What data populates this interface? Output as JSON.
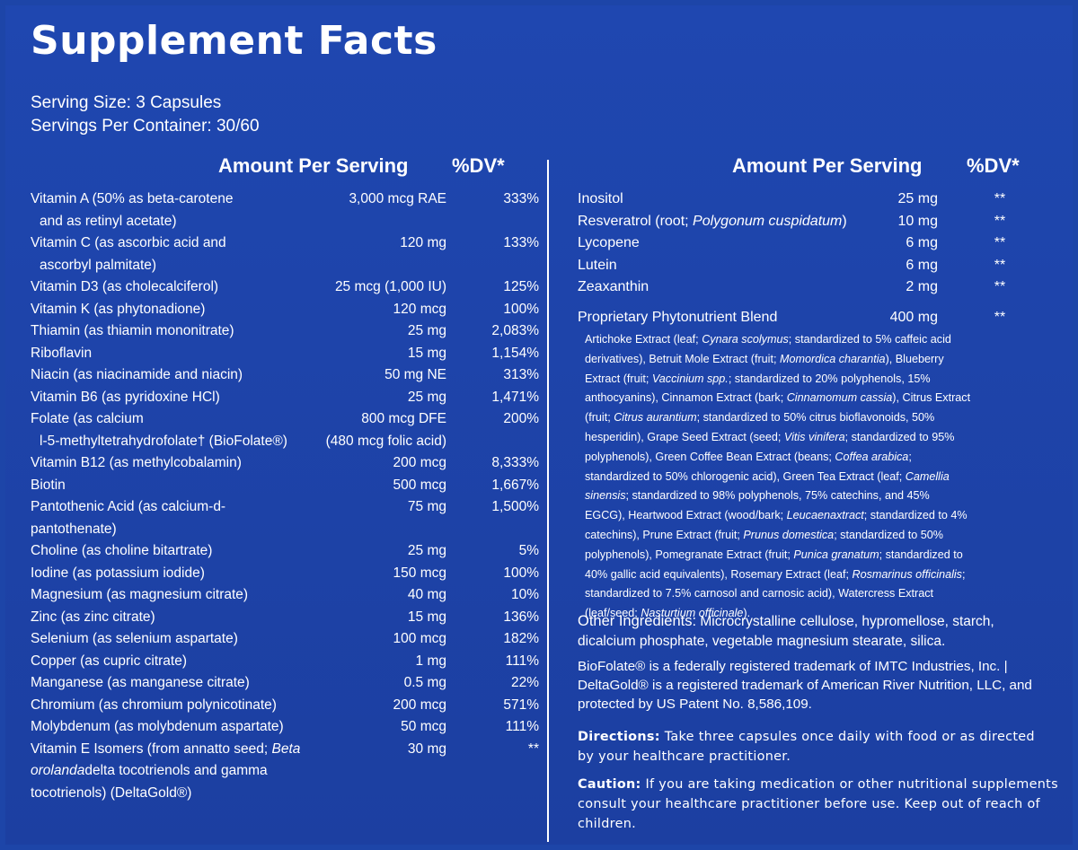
{
  "title": "Supplement Facts",
  "serving_size": "Serving Size: 3 Capsules",
  "servings_per_container": "Servings Per Container: 30/60",
  "header": {
    "amount": "Amount Per Serving",
    "dv": "%DV*"
  },
  "left_rows": [
    {
      "name": "Vitamin A (50% as beta-carotene",
      "sub": "and as retinyl acetate)",
      "amount": "3,000 mcg RAE",
      "dv": "333%"
    },
    {
      "name": "Vitamin C (as ascorbic acid and",
      "sub": "ascorbyl palmitate)",
      "amount": "120 mg",
      "dv": "133%"
    },
    {
      "name": "Vitamin D3 (as cholecalciferol)",
      "amount": "25 mcg (1,000 IU)",
      "dv": "125%"
    },
    {
      "name": "Vitamin K (as phytonadione)",
      "amount": "120 mcg",
      "dv": "100%"
    },
    {
      "name": "Thiamin (as thiamin mononitrate)",
      "amount": "25 mg",
      "dv": "2,083%"
    },
    {
      "name": "Riboflavin",
      "amount": "15 mg",
      "dv": "1,154%"
    },
    {
      "name": "Niacin (as niacinamide and niacin)",
      "amount": "50 mg NE",
      "dv": "313%"
    },
    {
      "name": "Vitamin B6 (as pyridoxine HCl)",
      "amount": "25 mg",
      "dv": "1,471%"
    },
    {
      "name": "Folate (as calcium",
      "sub": "l-5-methyltetrahydrofolate† (BioFolate®)",
      "amount": "800 mcg DFE",
      "amount2": "(480 mcg folic acid)",
      "dv": "200%"
    },
    {
      "name": "Vitamin B12 (as methylcobalamin)",
      "amount": "200 mcg",
      "dv": "8,333%"
    },
    {
      "name": "Biotin",
      "amount": "500 mcg",
      "dv": "1,667%"
    },
    {
      "name": "Pantothenic Acid (as calcium-d-pantothenate)",
      "amount": "75 mg",
      "dv": "1,500%"
    },
    {
      "name": "Choline (as choline bitartrate)",
      "amount": "25 mg",
      "dv": "5%"
    },
    {
      "name": "Iodine (as potassium iodide)",
      "amount": "150 mcg",
      "dv": "100%"
    },
    {
      "name": "Magnesium (as magnesium citrate)",
      "amount": "40 mg",
      "dv": "10%"
    },
    {
      "name": "Zinc (as zinc citrate)",
      "amount": "15 mg",
      "dv": "136%"
    },
    {
      "name": "Selenium (as selenium aspartate)",
      "amount": "100 mcg",
      "dv": "182%"
    },
    {
      "name": "Copper (as cupric citrate)",
      "amount": "1 mg",
      "dv": "111%"
    },
    {
      "name": "Manganese (as manganese citrate)",
      "amount": "0.5 mg",
      "dv": "22%"
    },
    {
      "name": "Chromium (as chromium polynicotinate)",
      "amount": "200 mcg",
      "dv": "571%"
    },
    {
      "name": "Molybdenum (as molybdenum aspartate)",
      "amount": "50 mcg",
      "dv": "111%"
    }
  ],
  "vitamin_e": {
    "line1": "Vitamin E Isomers (from annatto seed; ",
    "line1_italic": "Beta",
    "line2_italic": "orolanda",
    "line2": "delta tocotrienols and gamma",
    "line3": "tocotrienols) (DeltaGold®)",
    "amount": "30 mg",
    "dv": "**"
  },
  "right_rows": [
    {
      "name": "Inositol",
      "amount": "25 mg",
      "dv": "**"
    },
    {
      "name": "Resveratrol (root; ",
      "name_italic": "Polygonum cuspidatum",
      "name_end": ")",
      "amount": "10 mg",
      "dv": "**"
    },
    {
      "name": "Lycopene",
      "amount": "6 mg",
      "dv": "**"
    },
    {
      "name": "Lutein",
      "amount": "6 mg",
      "dv": "**"
    },
    {
      "name": "Zeaxanthin",
      "amount": "2 mg",
      "dv": "**"
    }
  ],
  "blend": {
    "name": "Proprietary Phytonutrient Blend",
    "amount": "400 mg",
    "dv": "**"
  },
  "blend_parts": [
    {
      "t": "Artichoke Extract (leaf; "
    },
    {
      "i": "Cynara scolymus"
    },
    {
      "t": "; standardized to 5% caffeic acid derivatives), Betruit Mole Extract (fruit; "
    },
    {
      "i": "Momordica charantia"
    },
    {
      "t": "), Blueberry Extract (fruit; "
    },
    {
      "i": "Vaccinium spp."
    },
    {
      "t": "; standardized to 20% polyphenols, 15% anthocyanins), Cinnamon Extract (bark; "
    },
    {
      "i": "Cinnamomum cassia"
    },
    {
      "t": "), Citrus Extract (fruit; "
    },
    {
      "i": "Citrus aurantium"
    },
    {
      "t": "; standardized to 50% citrus bioflavonoids, 50% hesperidin), Grape Seed Extract (seed; "
    },
    {
      "i": "Vitis vinifera"
    },
    {
      "t": "; standardized to 95% polyphenols), Green Coffee Bean Extract (beans; "
    },
    {
      "i": "Coffea arabica"
    },
    {
      "t": "; standardized to 50% chlorogenic acid), Green Tea Extract (leaf; "
    },
    {
      "i": "Camellia sinensis"
    },
    {
      "t": "; standardized to 98% polyphenols, 75% catechins, and 45% EGCG), Heartwood Extract (wood/bark; "
    },
    {
      "i": "Leucaenaxtract"
    },
    {
      "t": "; standardized to 4% catechins), Prune Extract (fruit; "
    },
    {
      "i": "Prunus domestica"
    },
    {
      "t": "; standardized to 50% polyphenols), Pomegranate Extract (fruit; "
    },
    {
      "i": "Punica granatum"
    },
    {
      "t": "; standardized to 40% gallic acid equivalents), Rosemary Extract (leaf; "
    },
    {
      "i": "Rosmarinus officinalis"
    },
    {
      "t": "; standardized to 7.5% carnosol and carnosic acid), Watercress Extract (leaf/seed; "
    },
    {
      "i": "Nasturtium officinale"
    },
    {
      "t": ")."
    }
  ],
  "other": {
    "label": "Other Ingredients:",
    "text": " Microcrystalline cellulose, hypromellose, starch, dicalcium phosphate, vegetable magnesium stearate, silica."
  },
  "trademark": "BioFolate® is a federally registered trademark of IMTC Industries, Inc. | DeltaGold® is a registered trademark of American River Nutrition, LLC, and protected by US Patent No. 8,586,109.",
  "directions": {
    "label": "Directions:",
    "text": " Take three capsules once daily with food or as directed by your healthcare practitioner."
  },
  "caution": {
    "label": "Caution:",
    "text": " If you are taking medication or other nutritional supplements consult your healthcare practitioner before use. Keep out of reach of children."
  }
}
